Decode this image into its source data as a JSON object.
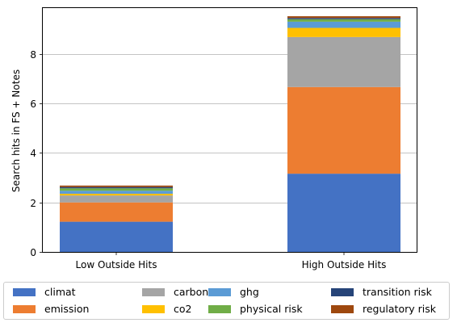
{
  "chart_data": {
    "type": "bar",
    "stacked": true,
    "categories": [
      "Low Outside Hits",
      "High Outside Hits"
    ],
    "ylabel": "Search hits in FS + Notes",
    "xlabel": "",
    "ylim": [
      0,
      9.85
    ],
    "yticks": [
      0,
      2,
      4,
      6,
      8
    ],
    "grid": "y",
    "legend_position": "bottom",
    "series": [
      {
        "name": "climat",
        "color": "#4472C4",
        "values": [
          1.22,
          3.16
        ]
      },
      {
        "name": "emission",
        "color": "#ED7D31",
        "values": [
          0.78,
          3.5
        ]
      },
      {
        "name": "carbon",
        "color": "#A5A5A5",
        "values": [
          0.28,
          2.02
        ]
      },
      {
        "name": "co2",
        "color": "#FFC000",
        "values": [
          0.07,
          0.37
        ]
      },
      {
        "name": "ghg",
        "color": "#5B9BD5",
        "values": [
          0.12,
          0.25
        ]
      },
      {
        "name": "physical risk",
        "color": "#70AD47",
        "values": [
          0.1,
          0.1
        ]
      },
      {
        "name": "transition risk",
        "color": "#264478",
        "values": [
          0.05,
          0.05
        ]
      },
      {
        "name": "regulatory risk",
        "color": "#9E480E",
        "values": [
          0.06,
          0.07
        ]
      }
    ]
  }
}
